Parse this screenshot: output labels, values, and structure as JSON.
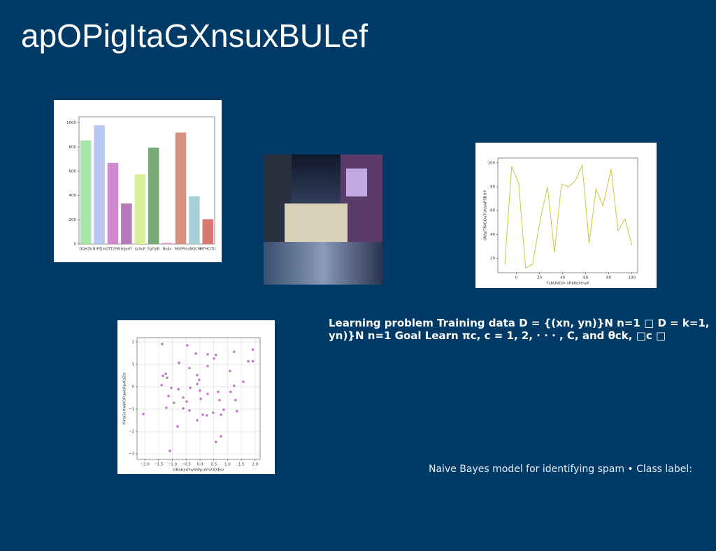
{
  "slide": {
    "title": "apOPigItaGXnsuxBULef",
    "text_block": "Learning problem Training data D = {(xn, yn)}N n=1 □ D = k=1, yn)}N n=1 Goal Learn πc, c = 1, 2, · · · , C, and θck, □c □",
    "caption": "Naive Bayes model for identifying spam • Class label:"
  },
  "chart_data": [
    {
      "type": "bar",
      "categories": [
        "DQeiZk",
        "NrPZJm",
        "QTTzPW",
        "HgvdY",
        "cpXuP",
        "FgYjdB",
        "NojIx",
        "MsPPH",
        "qNOCW",
        "MTHCITU"
      ],
      "values": [
        855,
        980,
        670,
        335,
        575,
        795,
        10,
        920,
        395,
        205
      ],
      "colors": [
        "#a8e6a8",
        "#b8c8f0",
        "#d08ad0",
        "#b87ab8",
        "#d8f09a",
        "#78aa78",
        "#e8a0c8",
        "#d89080",
        "#a8d0d8",
        "#d87870"
      ],
      "ylim": [
        0,
        1050
      ],
      "yticks": [
        0,
        200,
        400,
        600,
        800,
        1000
      ],
      "grid": false
    },
    {
      "type": "line",
      "xlabel": "YsbUlxfjm oRkKellmyK",
      "ylabel": "dWpfTWOQuTUKswPSBUP",
      "x": [
        -10,
        -4,
        2,
        8,
        14,
        21,
        27,
        33,
        39,
        45,
        51,
        57,
        63,
        69,
        75,
        82,
        88,
        94,
        100
      ],
      "values": [
        15,
        97,
        83,
        12,
        15,
        54,
        80,
        25,
        82,
        80,
        85,
        98,
        33,
        78,
        64,
        95,
        43,
        53,
        31
      ],
      "color": "#c8c83a",
      "xlim": [
        -16,
        105
      ],
      "xticks": [
        0,
        20,
        40,
        60,
        80,
        100
      ],
      "ylim": [
        8,
        104
      ],
      "yticks": [
        20,
        40,
        60,
        80,
        100
      ],
      "grid": false
    },
    {
      "type": "scatter",
      "xlabel": "GRabadYwXWpuVhXXXEor",
      "ylabel": "NYqGoVwWOPqwLRjvKdZd",
      "x": [
        -1.37,
        -0.46,
        1.92,
        1.24,
        -0.15,
        0.58,
        0.28,
        0.51,
        1.75,
        1.92,
        -0.76,
        0.28,
        -0.38,
        1.09,
        -1.24,
        -1.34,
        -0.1,
        -1.19,
        -0.03,
        1.57,
        -1.39,
        -0.1,
        -1.04,
        -0.35,
        -0.78,
        1.24,
        0.0,
        0.66,
        -1.14,
        -0.61,
        0.28,
        1.11,
        0.71,
        -0.48,
        1.29,
        -0.94,
        0.03,
        -1.22,
        -0.61,
        0.86,
        1.34,
        -0.38,
        0.48,
        -2.05,
        0.1,
        0.25,
        0.76,
        -0.1,
        -0.81,
        0.76,
        0.58,
        -1.09
      ],
      "values": [
        1.91,
        1.85,
        1.66,
        1.56,
        1.48,
        1.42,
        1.45,
        1.26,
        1.14,
        1.14,
        1.07,
        0.92,
        0.83,
        0.7,
        0.58,
        0.49,
        0.52,
        0.4,
        0.31,
        0.22,
        0.07,
        0.12,
        -0.05,
        -0.05,
        -0.11,
        0.04,
        -0.17,
        -0.23,
        -0.42,
        -0.48,
        -0.32,
        -0.23,
        -0.6,
        -0.66,
        -0.6,
        -0.72,
        -0.54,
        -0.94,
        -0.97,
        -1.03,
        -1.09,
        -1.06,
        -1.16,
        -1.22,
        -1.25,
        -1.28,
        -1.25,
        -1.5,
        -1.78,
        -2.22,
        -2.47,
        -2.87
      ],
      "color": "#c07ac8",
      "xlim": [
        -2.28,
        2.18
      ],
      "xticks": [
        {
          "value": -2,
          "label": "−2.0"
        },
        {
          "value": -1.5,
          "label": "−1.5"
        },
        {
          "value": -1,
          "label": "−1.0"
        },
        {
          "value": -0.5,
          "label": "−0.5"
        },
        {
          "value": 0,
          "label": "0.0"
        },
        {
          "value": 0.5,
          "label": "0.5"
        },
        {
          "value": 1,
          "label": "1.0"
        },
        {
          "value": 1.5,
          "label": "1.5"
        },
        {
          "value": 2,
          "label": "2.0"
        }
      ],
      "ylim": [
        -3.25,
        2.19
      ],
      "yticks": [
        {
          "value": -3,
          "label": "−3"
        },
        {
          "value": -2,
          "label": "−2"
        },
        {
          "value": -1,
          "label": "−1"
        },
        0,
        1,
        2
      ],
      "grid": true
    }
  ]
}
